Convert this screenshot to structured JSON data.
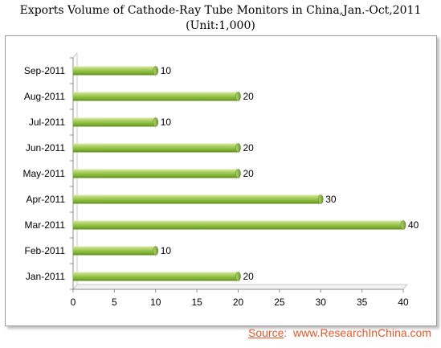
{
  "chart_data": {
    "type": "bar",
    "orientation": "horizontal",
    "title": "Exports Volume of Cathode-Ray Tube Monitors in China,Jan.-Oct,2011",
    "subtitle": "(Unit:1,000)",
    "categories": [
      "Sep-2011",
      "Aug-2011",
      "Jul-2011",
      "Jun-2011",
      "May-2011",
      "Apr-2011",
      "Mar-2011",
      "Feb-2011",
      "Jan-2011"
    ],
    "values": [
      10,
      20,
      10,
      20,
      20,
      30,
      40,
      10,
      20
    ],
    "xlim": [
      0,
      40
    ],
    "xticks": [
      "0",
      "5",
      "10",
      "15",
      "20",
      "25",
      "30",
      "35",
      "40"
    ],
    "grid": false,
    "legend": "none",
    "bar_color": "#8dbb3c"
  },
  "source": {
    "label": "Source",
    "sep": ":",
    "text": "www.ResearchInChina.com"
  }
}
